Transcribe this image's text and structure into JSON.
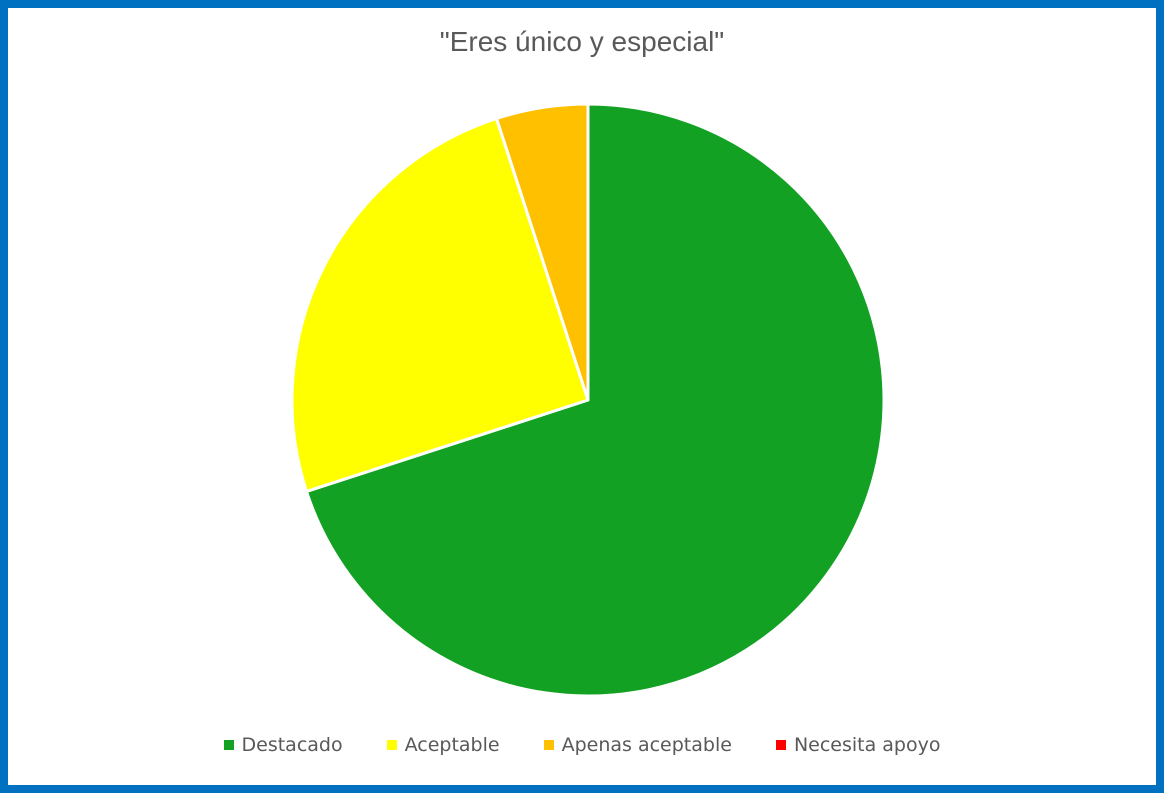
{
  "chart_data": {
    "type": "pie",
    "title": "\"Eres único y especial\"",
    "legend_position": "bottom",
    "slices": [
      {
        "label": "Destacado",
        "value": 70,
        "color": "#12a122"
      },
      {
        "label": "Aceptable",
        "value": 25,
        "color": "#ffff00"
      },
      {
        "label": "Apenas aceptable",
        "value": 5,
        "color": "#ffc000"
      },
      {
        "label": "Necesita apoyo",
        "value": 0,
        "color": "#ff0000"
      }
    ]
  }
}
